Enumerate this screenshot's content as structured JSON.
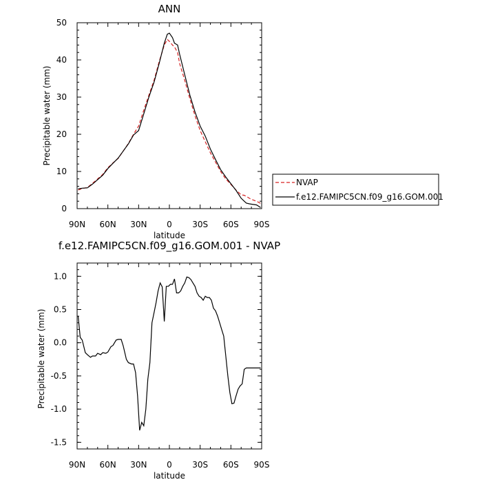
{
  "chart_data": [
    {
      "type": "line",
      "title": "ANN",
      "xlabel": "latitude",
      "ylabel": "Precipitable water (mm)",
      "xlim": [
        90,
        -90
      ],
      "ylim": [
        0,
        50
      ],
      "x_ticks": [
        90,
        60,
        30,
        0,
        -30,
        -60,
        -90
      ],
      "x_tick_labels": [
        "90N",
        "60N",
        "30N",
        "0",
        "30S",
        "60S",
        "90S"
      ],
      "y_ticks": [
        0,
        10,
        20,
        30,
        40,
        50
      ],
      "y_tick_labels": [
        "0",
        "10",
        "20",
        "30",
        "40",
        "50"
      ],
      "legend": {
        "placement": "right-outside",
        "entries": [
          {
            "label": "NVAP",
            "color": "#d62020",
            "style": "dashed"
          },
          {
            "label": "f.e12.FAMIPC5CN.f09_g16.GOM.001",
            "color": "#000000",
            "style": "solid"
          }
        ]
      },
      "series": [
        {
          "name": "NVAP",
          "color": "#d62020",
          "style": "dashed",
          "x": [
            89,
            85,
            80,
            75,
            70,
            65,
            60,
            55,
            50,
            45,
            40,
            35,
            30,
            25,
            20,
            15,
            10,
            5,
            2,
            0,
            -3,
            -5,
            -8,
            -10,
            -15,
            -20,
            -25,
            -30,
            -35,
            -40,
            -45,
            -50,
            -55,
            -60,
            -65,
            -70,
            -73,
            -75,
            -78,
            -80,
            -85,
            -89
          ],
          "y": [
            5.0,
            5.4,
            5.7,
            6.8,
            8.0,
            9.2,
            11.0,
            12.3,
            13.5,
            15.5,
            17.5,
            20.0,
            22.2,
            26.5,
            30.5,
            34.5,
            39.5,
            44.0,
            45.5,
            45.0,
            44.0,
            43.5,
            42.0,
            39.0,
            34.5,
            29.5,
            25.0,
            21.0,
            18.0,
            15.0,
            12.5,
            10.0,
            8.0,
            6.5,
            5.0,
            3.7,
            3.6,
            3.3,
            2.8,
            2.5,
            2.0,
            1.4
          ]
        },
        {
          "name": "f.e12.FAMIPC5CN.f09_g16.GOM.001",
          "color": "#000000",
          "style": "solid",
          "x": [
            89,
            85,
            80,
            75,
            70,
            65,
            60,
            55,
            50,
            45,
            40,
            35,
            30,
            25,
            20,
            15,
            10,
            5,
            2,
            0,
            -3,
            -5,
            -8,
            -10,
            -15,
            -20,
            -25,
            -30,
            -35,
            -40,
            -45,
            -50,
            -55,
            -60,
            -65,
            -70,
            -73,
            -75,
            -78,
            -80,
            -85,
            -89
          ],
          "y": [
            5.3,
            5.5,
            5.6,
            6.6,
            7.8,
            9.0,
            10.8,
            12.2,
            13.6,
            15.5,
            17.4,
            19.8,
            21.0,
            25.5,
            30.0,
            34.0,
            39.0,
            44.5,
            46.9,
            47.2,
            46.0,
            44.5,
            44.0,
            41.5,
            36.0,
            30.5,
            26.0,
            22.2,
            19.5,
            16.0,
            13.2,
            10.5,
            8.5,
            6.7,
            4.9,
            2.8,
            2.0,
            1.5,
            1.3,
            1.2,
            1.0,
            0.3
          ]
        }
      ]
    },
    {
      "type": "line",
      "title": "f.e12.FAMIPC5CN.f09_g16.GOM.001 - NVAP",
      "xlabel": "latitude",
      "ylabel": "Precipitable water (mm)",
      "xlim": [
        90,
        -90
      ],
      "ylim": [
        -1.6,
        1.2
      ],
      "x_ticks": [
        90,
        60,
        30,
        0,
        -30,
        -60,
        -90
      ],
      "x_tick_labels": [
        "90N",
        "60N",
        "30N",
        "0",
        "30S",
        "60S",
        "90S"
      ],
      "y_ticks": [
        1.0,
        0.5,
        0.0,
        -0.5,
        -1.0,
        -1.5
      ],
      "y_tick_labels": [
        "1.0",
        "0.5",
        "0.0",
        "-0.5",
        "-1.0",
        "-1.5"
      ],
      "series": [
        {
          "color": "#000000",
          "style": "solid",
          "x": [
            89,
            87,
            85,
            82,
            80,
            77,
            75,
            72,
            70,
            67,
            65,
            62,
            60,
            57,
            55,
            52,
            50,
            47,
            45,
            42,
            40,
            37,
            35,
            33,
            31,
            29,
            27,
            25,
            23,
            21,
            19,
            17,
            15,
            13,
            11,
            9,
            7,
            5,
            3,
            1,
            -1,
            -3,
            -5,
            -7,
            -9,
            -11,
            -13,
            -15,
            -17,
            -19,
            -21,
            -23,
            -25,
            -27,
            -29,
            -31,
            -33,
            -35,
            -37,
            -39,
            -41,
            -43,
            -45,
            -47,
            -49,
            -51,
            -53,
            -55,
            -57,
            -59,
            -61,
            -63,
            -65,
            -67,
            -69,
            -71,
            -73,
            -75,
            -77,
            -79,
            -81,
            -83,
            -85,
            -87,
            -89
          ],
          "y": [
            0.4,
            0.08,
            0.04,
            -0.15,
            -0.18,
            -0.22,
            -0.2,
            -0.2,
            -0.16,
            -0.18,
            -0.15,
            -0.16,
            -0.14,
            -0.06,
            -0.04,
            0.04,
            0.05,
            0.05,
            -0.05,
            -0.25,
            -0.3,
            -0.32,
            -0.32,
            -0.45,
            -0.8,
            -1.32,
            -1.2,
            -1.25,
            -1.0,
            -0.55,
            -0.3,
            0.3,
            0.45,
            0.6,
            0.78,
            0.9,
            0.84,
            0.32,
            0.85,
            0.85,
            0.88,
            0.88,
            0.96,
            0.75,
            0.75,
            0.78,
            0.85,
            0.9,
            0.99,
            0.98,
            0.95,
            0.9,
            0.85,
            0.75,
            0.7,
            0.68,
            0.64,
            0.7,
            0.68,
            0.68,
            0.64,
            0.52,
            0.48,
            0.4,
            0.3,
            0.2,
            0.1,
            -0.2,
            -0.5,
            -0.75,
            -0.92,
            -0.91,
            -0.8,
            -0.7,
            -0.65,
            -0.62,
            -0.4,
            -0.38,
            -0.38,
            -0.38,
            -0.38,
            -0.38,
            -0.38,
            -0.38,
            -0.38
          ]
        }
      ]
    }
  ]
}
